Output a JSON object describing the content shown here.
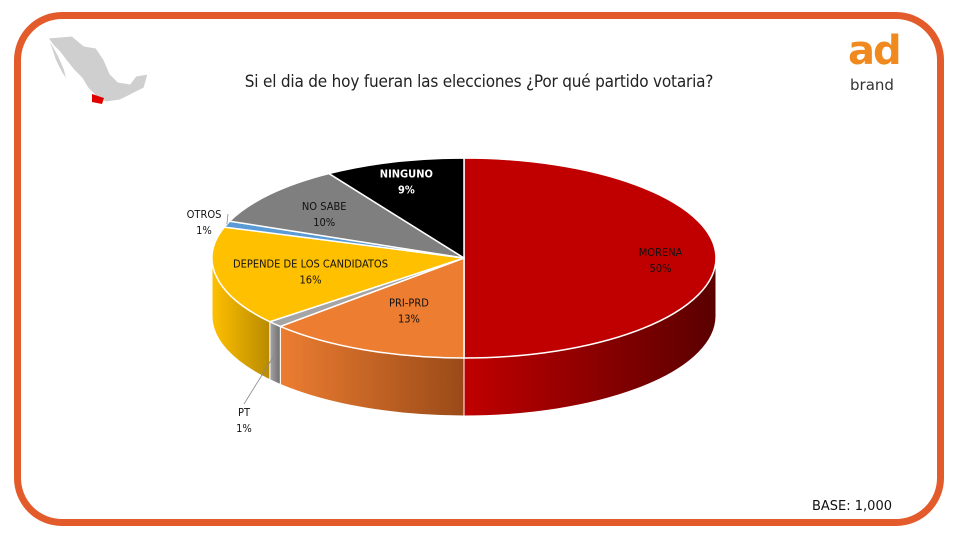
{
  "title": "Si el dia de hoy fueran las elecciones ¿Por qué partido votaria?",
  "base_label": "BASE: 1,000",
  "logo": {
    "primary": "ad",
    "secondary": "brand",
    "color": "#f08a1e"
  },
  "map_icon": "mexico-map-icon",
  "chart_data": {
    "type": "pie",
    "style": "3d",
    "title": "Si el dia de hoy fueran las elecciones ¿Por qué partido votaria?",
    "slices": [
      {
        "label": "MORENA",
        "value": 50,
        "value_label": "50%",
        "color": "#c00000",
        "side": "#5a0000",
        "text_color": "#111111"
      },
      {
        "label": "PRI-PRD",
        "value": 13,
        "value_label": "13%",
        "color": "#ec7d31",
        "side": "#9a4a18",
        "text_color": "#111111"
      },
      {
        "label": "PT",
        "value": 1,
        "value_label": "1%",
        "color": "#a5a5a5",
        "side": "#6e6e6e",
        "text_color": "#111111"
      },
      {
        "label": "DEPENDE DE LOS CANDIDATOS",
        "value": 16,
        "value_label": "16%",
        "color": "#ffc000",
        "side": "#b88a00",
        "text_color": "#111111"
      },
      {
        "label": "OTROS",
        "value": 1,
        "value_label": "1%",
        "color": "#5b9bd5",
        "side": "#2e6ea8",
        "text_color": "#111111"
      },
      {
        "label": "NO SABE",
        "value": 10,
        "value_label": "10%",
        "color": "#7f7f7f",
        "side": "#4a4a4a",
        "text_color": "#111111"
      },
      {
        "label": "NINGUNO",
        "value": 9,
        "value_label": "9%",
        "color": "#000000",
        "side": "#000000",
        "text_color": "#ffffff"
      }
    ]
  }
}
